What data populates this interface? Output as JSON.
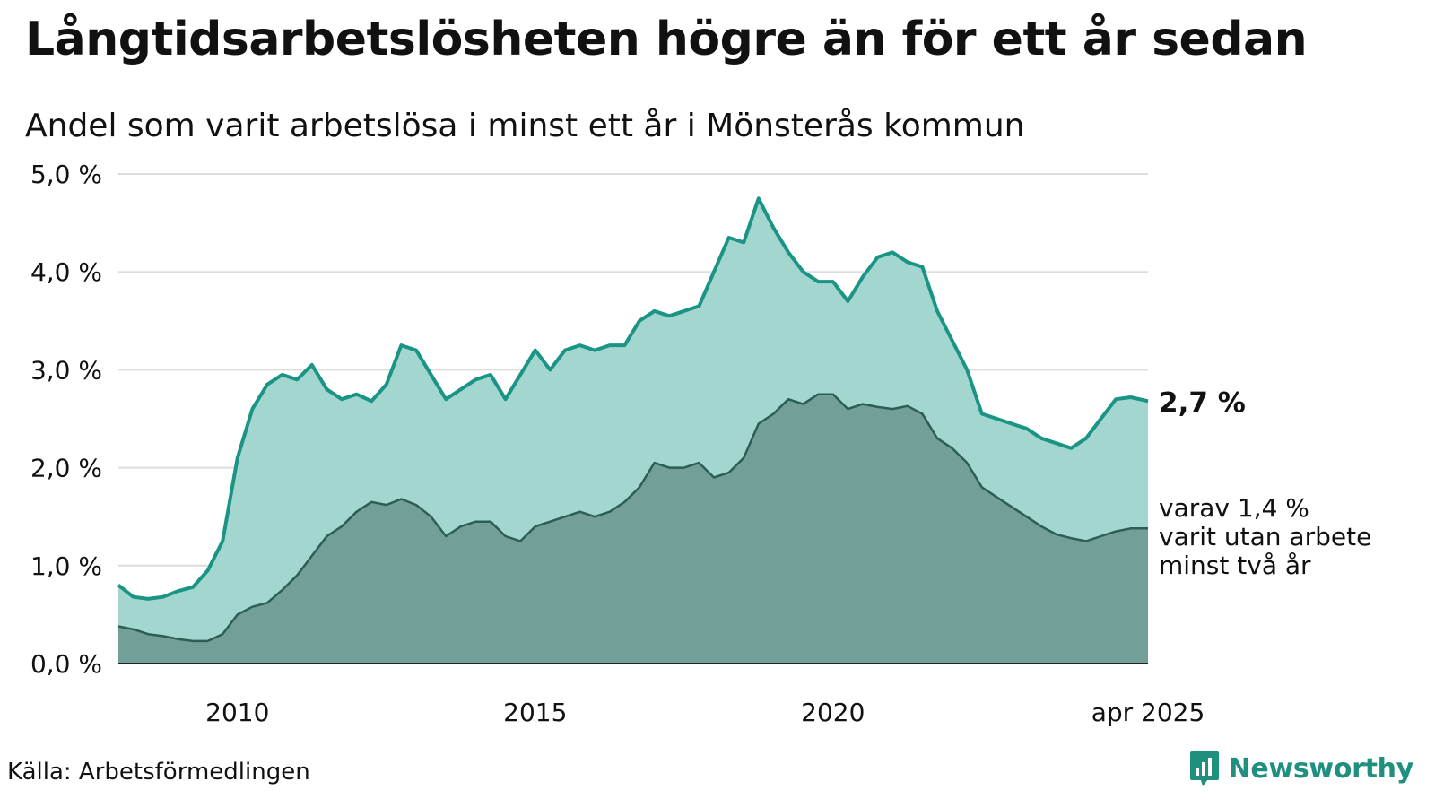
{
  "header": {
    "title": "Långtidsarbetslösheten högre än för ett år sedan",
    "subtitle": "Andel som varit arbetslösa i minst ett år i Mönsterås kommun"
  },
  "footer": {
    "source": "Källa: Arbetsförmedlingen",
    "brand": "Newsworthy",
    "brand_icon": "bar-chart-icon"
  },
  "colors": {
    "one_year_line": "#1a9484",
    "one_year_fill": "#a3d6cf",
    "two_year_line": "#2d5e56",
    "two_year_fill": "#729f98",
    "grid": "#dddddd",
    "brand": "#1f8f7e"
  },
  "chart_data": {
    "type": "area",
    "ylim": [
      0,
      5
    ],
    "y_ticks": [
      0,
      1,
      2,
      3,
      4,
      5
    ],
    "y_tick_labels": [
      "0,0 %",
      "1,0 %",
      "2,0 %",
      "3,0 %",
      "4,0 %",
      "5,0 %"
    ],
    "x_range": [
      2008.0,
      2025.29
    ],
    "x_ticks": [
      2010,
      2015,
      2020,
      2025.29
    ],
    "x_tick_labels": [
      "2010",
      "2015",
      "2020",
      "apr 2025"
    ],
    "grid": "horizontal",
    "end_labels": {
      "one_year": "2,7 %",
      "two_year": [
        "varav 1,4 %",
        "varit utan arbete",
        "minst två år"
      ]
    },
    "series": [
      {
        "key": "one_year",
        "points": [
          [
            2008.0,
            0.8
          ],
          [
            2008.25,
            0.68
          ],
          [
            2008.5,
            0.66
          ],
          [
            2008.75,
            0.68
          ],
          [
            2009.0,
            0.74
          ],
          [
            2009.25,
            0.78
          ],
          [
            2009.5,
            0.95
          ],
          [
            2009.75,
            1.25
          ],
          [
            2010.0,
            2.1
          ],
          [
            2010.25,
            2.6
          ],
          [
            2010.5,
            2.85
          ],
          [
            2010.75,
            2.95
          ],
          [
            2011.0,
            2.9
          ],
          [
            2011.25,
            3.05
          ],
          [
            2011.5,
            2.8
          ],
          [
            2011.75,
            2.7
          ],
          [
            2012.0,
            2.75
          ],
          [
            2012.25,
            2.68
          ],
          [
            2012.5,
            2.85
          ],
          [
            2012.75,
            3.25
          ],
          [
            2013.0,
            3.2
          ],
          [
            2013.25,
            2.95
          ],
          [
            2013.5,
            2.7
          ],
          [
            2013.75,
            2.8
          ],
          [
            2014.0,
            2.9
          ],
          [
            2014.25,
            2.95
          ],
          [
            2014.5,
            2.7
          ],
          [
            2014.75,
            2.95
          ],
          [
            2015.0,
            3.2
          ],
          [
            2015.25,
            3.0
          ],
          [
            2015.5,
            3.2
          ],
          [
            2015.75,
            3.25
          ],
          [
            2016.0,
            3.2
          ],
          [
            2016.25,
            3.25
          ],
          [
            2016.5,
            3.25
          ],
          [
            2016.75,
            3.5
          ],
          [
            2017.0,
            3.6
          ],
          [
            2017.25,
            3.55
          ],
          [
            2017.5,
            3.6
          ],
          [
            2017.75,
            3.65
          ],
          [
            2018.0,
            4.0
          ],
          [
            2018.25,
            4.35
          ],
          [
            2018.5,
            4.3
          ],
          [
            2018.75,
            4.75
          ],
          [
            2019.0,
            4.45
          ],
          [
            2019.25,
            4.2
          ],
          [
            2019.5,
            4.0
          ],
          [
            2019.75,
            3.9
          ],
          [
            2020.0,
            3.9
          ],
          [
            2020.25,
            3.7
          ],
          [
            2020.5,
            3.95
          ],
          [
            2020.75,
            4.15
          ],
          [
            2021.0,
            4.2
          ],
          [
            2021.25,
            4.1
          ],
          [
            2021.5,
            4.05
          ],
          [
            2021.75,
            3.6
          ],
          [
            2022.0,
            3.3
          ],
          [
            2022.25,
            3.0
          ],
          [
            2022.5,
            2.55
          ],
          [
            2022.75,
            2.5
          ],
          [
            2023.0,
            2.45
          ],
          [
            2023.25,
            2.4
          ],
          [
            2023.5,
            2.3
          ],
          [
            2023.75,
            2.25
          ],
          [
            2024.0,
            2.2
          ],
          [
            2024.25,
            2.3
          ],
          [
            2024.5,
            2.5
          ],
          [
            2024.75,
            2.7
          ],
          [
            2025.0,
            2.72
          ],
          [
            2025.29,
            2.68
          ]
        ]
      },
      {
        "key": "two_year",
        "points": [
          [
            2008.0,
            0.38
          ],
          [
            2008.25,
            0.35
          ],
          [
            2008.5,
            0.3
          ],
          [
            2008.75,
            0.28
          ],
          [
            2009.0,
            0.25
          ],
          [
            2009.25,
            0.23
          ],
          [
            2009.5,
            0.23
          ],
          [
            2009.75,
            0.3
          ],
          [
            2010.0,
            0.5
          ],
          [
            2010.25,
            0.58
          ],
          [
            2010.5,
            0.62
          ],
          [
            2010.75,
            0.75
          ],
          [
            2011.0,
            0.9
          ],
          [
            2011.25,
            1.1
          ],
          [
            2011.5,
            1.3
          ],
          [
            2011.75,
            1.4
          ],
          [
            2012.0,
            1.55
          ],
          [
            2012.25,
            1.65
          ],
          [
            2012.5,
            1.62
          ],
          [
            2012.75,
            1.68
          ],
          [
            2013.0,
            1.62
          ],
          [
            2013.25,
            1.5
          ],
          [
            2013.5,
            1.3
          ],
          [
            2013.75,
            1.4
          ],
          [
            2014.0,
            1.45
          ],
          [
            2014.25,
            1.45
          ],
          [
            2014.5,
            1.3
          ],
          [
            2014.75,
            1.25
          ],
          [
            2015.0,
            1.4
          ],
          [
            2015.25,
            1.45
          ],
          [
            2015.5,
            1.5
          ],
          [
            2015.75,
            1.55
          ],
          [
            2016.0,
            1.5
          ],
          [
            2016.25,
            1.55
          ],
          [
            2016.5,
            1.65
          ],
          [
            2016.75,
            1.8
          ],
          [
            2017.0,
            2.05
          ],
          [
            2017.25,
            2.0
          ],
          [
            2017.5,
            2.0
          ],
          [
            2017.75,
            2.05
          ],
          [
            2018.0,
            1.9
          ],
          [
            2018.25,
            1.95
          ],
          [
            2018.5,
            2.1
          ],
          [
            2018.75,
            2.45
          ],
          [
            2019.0,
            2.55
          ],
          [
            2019.25,
            2.7
          ],
          [
            2019.5,
            2.65
          ],
          [
            2019.75,
            2.75
          ],
          [
            2020.0,
            2.75
          ],
          [
            2020.25,
            2.6
          ],
          [
            2020.5,
            2.65
          ],
          [
            2020.75,
            2.62
          ],
          [
            2021.0,
            2.6
          ],
          [
            2021.25,
            2.63
          ],
          [
            2021.5,
            2.55
          ],
          [
            2021.75,
            2.3
          ],
          [
            2022.0,
            2.2
          ],
          [
            2022.25,
            2.05
          ],
          [
            2022.5,
            1.8
          ],
          [
            2022.75,
            1.7
          ],
          [
            2023.0,
            1.6
          ],
          [
            2023.25,
            1.5
          ],
          [
            2023.5,
            1.4
          ],
          [
            2023.75,
            1.32
          ],
          [
            2024.0,
            1.28
          ],
          [
            2024.25,
            1.25
          ],
          [
            2024.5,
            1.3
          ],
          [
            2024.75,
            1.35
          ],
          [
            2025.0,
            1.38
          ],
          [
            2025.29,
            1.38
          ]
        ]
      }
    ]
  }
}
